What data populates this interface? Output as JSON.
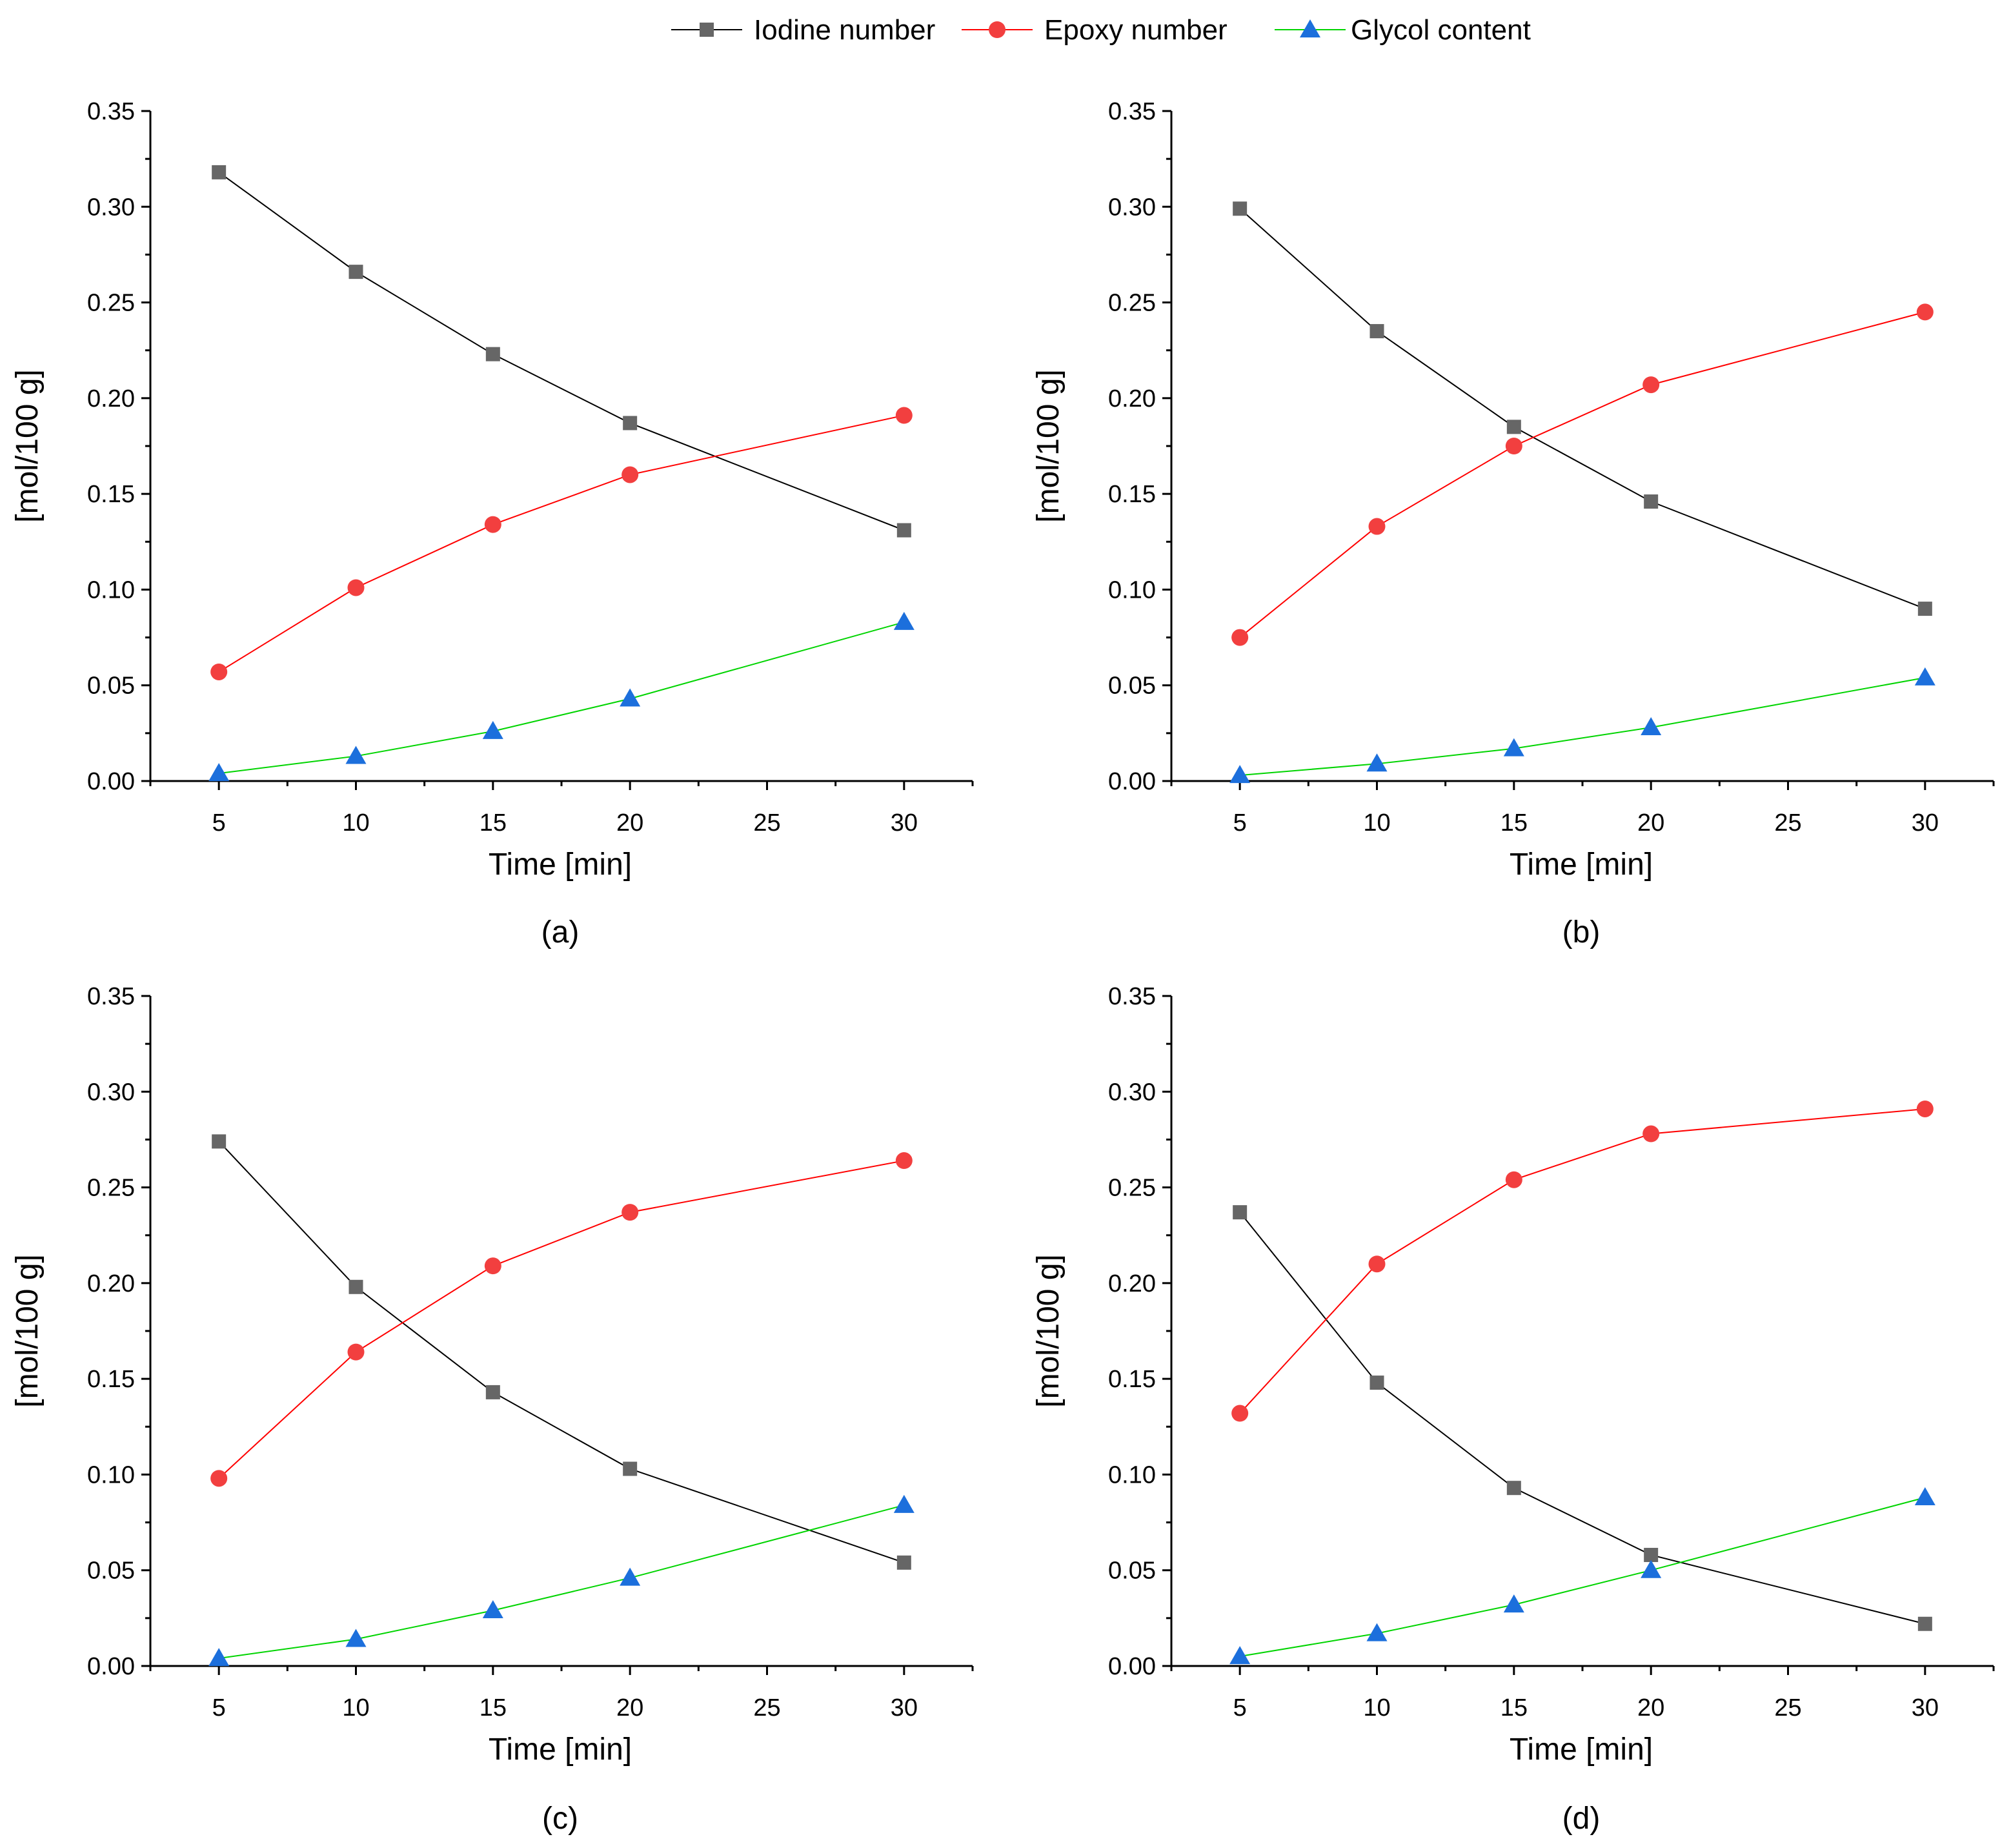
{
  "legend": {
    "entries": [
      {
        "name": "Iodine number",
        "color": "#000000",
        "marker_color": "#666666",
        "marker": "square"
      },
      {
        "name": "Epoxy number",
        "color": "#ff0000",
        "marker_color": "#f23f3f",
        "marker": "circle"
      },
      {
        "name": "Glycol content",
        "color": "#00d400",
        "marker_color": "#1c6fdc",
        "marker": "triangle"
      }
    ]
  },
  "chart_data": [
    {
      "type": "line",
      "caption": "(a)",
      "xlabel": "Time [min]",
      "ylabel": "[mol/100 g]",
      "xlim": [
        2.5,
        32.5
      ],
      "ylim": [
        0,
        0.35
      ],
      "xticks": [
        5,
        10,
        15,
        20,
        25,
        30
      ],
      "xtick_labels": [
        "5",
        "10",
        "15",
        "20",
        "25",
        "30"
      ],
      "yticks": [
        0,
        0.05,
        0.1,
        0.15,
        0.2,
        0.25,
        0.3,
        0.35
      ],
      "ytick_labels": [
        "0.00",
        "0.05",
        "0.10",
        "0.15",
        "0.20",
        "0.25",
        "0.30",
        "0.35"
      ],
      "x": [
        5,
        10,
        15,
        20,
        30
      ],
      "series": [
        {
          "name": "Iodine number",
          "values": [
            0.318,
            0.266,
            0.223,
            0.187,
            0.131
          ]
        },
        {
          "name": "Epoxy number",
          "values": [
            0.057,
            0.101,
            0.134,
            0.16,
            0.191
          ]
        },
        {
          "name": "Glycol content",
          "values": [
            0.004,
            0.013,
            0.026,
            0.043,
            0.083
          ]
        }
      ]
    },
    {
      "type": "line",
      "caption": "(b)",
      "xlabel": "Time [min]",
      "ylabel": "[mol/100 g]",
      "xlim": [
        2.5,
        32.5
      ],
      "ylim": [
        0,
        0.35
      ],
      "xticks": [
        5,
        10,
        15,
        20,
        25,
        30
      ],
      "xtick_labels": [
        "5",
        "10",
        "15",
        "20",
        "25",
        "30"
      ],
      "yticks": [
        0,
        0.05,
        0.1,
        0.15,
        0.2,
        0.25,
        0.3,
        0.35
      ],
      "ytick_labels": [
        "0.00",
        "0.05",
        "0.10",
        "0.15",
        "0.20",
        "0.25",
        "0.30",
        "0.35"
      ],
      "x": [
        5,
        10,
        15,
        20,
        30
      ],
      "series": [
        {
          "name": "Iodine number",
          "values": [
            0.299,
            0.235,
            0.185,
            0.146,
            0.09
          ]
        },
        {
          "name": "Epoxy number",
          "values": [
            0.075,
            0.133,
            0.175,
            0.207,
            0.245
          ]
        },
        {
          "name": "Glycol content",
          "values": [
            0.003,
            0.009,
            0.017,
            0.028,
            0.054
          ]
        }
      ]
    },
    {
      "type": "line",
      "caption": "(c)",
      "xlabel": "Time [min]",
      "ylabel": "[mol/100 g]",
      "xlim": [
        2.5,
        32.5
      ],
      "ylim": [
        0,
        0.35
      ],
      "xticks": [
        5,
        10,
        15,
        20,
        25,
        30
      ],
      "xtick_labels": [
        "5",
        "10",
        "15",
        "20",
        "25",
        "30"
      ],
      "yticks": [
        0,
        0.05,
        0.1,
        0.15,
        0.2,
        0.25,
        0.3,
        0.35
      ],
      "ytick_labels": [
        "0.00",
        "0.05",
        "0.10",
        "0.15",
        "0.20",
        "0.25",
        "0.30",
        "0.35"
      ],
      "x": [
        5,
        10,
        15,
        20,
        30
      ],
      "series": [
        {
          "name": "Iodine number",
          "values": [
            0.274,
            0.198,
            0.143,
            0.103,
            0.054
          ]
        },
        {
          "name": "Epoxy number",
          "values": [
            0.098,
            0.164,
            0.209,
            0.237,
            0.264
          ]
        },
        {
          "name": "Glycol content",
          "values": [
            0.004,
            0.014,
            0.029,
            0.046,
            0.084
          ]
        }
      ]
    },
    {
      "type": "line",
      "caption": "(d)",
      "xlabel": "Time [min]",
      "ylabel": "[mol/100 g]",
      "xlim": [
        2.5,
        32.5
      ],
      "ylim": [
        0,
        0.35
      ],
      "xticks": [
        5,
        10,
        15,
        20,
        25,
        30
      ],
      "xtick_labels": [
        "5",
        "10",
        "15",
        "20",
        "25",
        "30"
      ],
      "yticks": [
        0,
        0.05,
        0.1,
        0.15,
        0.2,
        0.25,
        0.3,
        0.35
      ],
      "ytick_labels": [
        "0.00",
        "0.05",
        "0.10",
        "0.15",
        "0.20",
        "0.25",
        "0.30",
        "0.35"
      ],
      "x": [
        5,
        10,
        15,
        20,
        30
      ],
      "series": [
        {
          "name": "Iodine number",
          "values": [
            0.237,
            0.148,
            0.093,
            0.058,
            0.022
          ]
        },
        {
          "name": "Epoxy number",
          "values": [
            0.132,
            0.21,
            0.254,
            0.278,
            0.291
          ]
        },
        {
          "name": "Glycol content",
          "values": [
            0.005,
            0.017,
            0.032,
            0.05,
            0.088
          ]
        }
      ]
    }
  ]
}
